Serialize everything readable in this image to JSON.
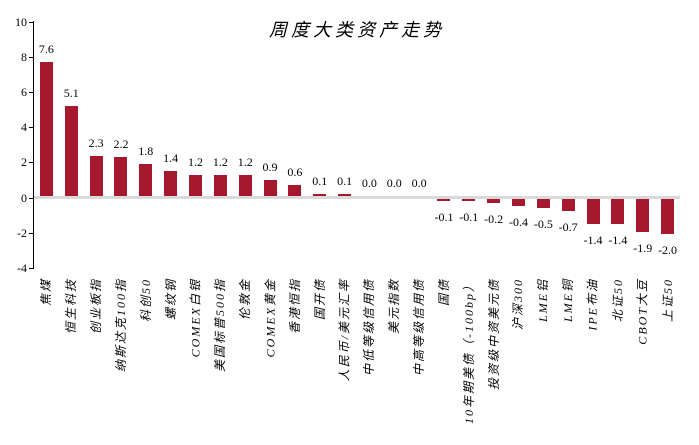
{
  "chart_data": {
    "type": "bar",
    "title": "周度大类资产走势",
    "categories": [
      "焦煤",
      "恒生科技",
      "创业板指",
      "纳斯达克100指",
      "科创50",
      "螺纹钢",
      "COMEX白银",
      "美国标普500指",
      "伦敦金",
      "COMEX黄金",
      "香港恒指",
      "国开债",
      "人民币/美元汇率",
      "中低等级信用债",
      "美元指数",
      "中高等级信用债",
      "国债",
      "10年期美债（-100bp）",
      "投资级中资美元债",
      "沪深300",
      "LME铝",
      "LME铜",
      "IPE布油",
      "北证50",
      "CBOT大豆",
      "上证50"
    ],
    "values": [
      7.6,
      5.1,
      2.3,
      2.2,
      1.8,
      1.4,
      1.2,
      1.2,
      1.2,
      0.9,
      0.6,
      0.1,
      0.1,
      0.0,
      0.0,
      0.0,
      -0.1,
      -0.1,
      -0.2,
      -0.4,
      -0.5,
      -0.7,
      -1.4,
      -1.4,
      -1.9,
      -2.0
    ],
    "value_labels": [
      "7.6",
      "5.1",
      "2.3",
      "2.2",
      "1.8",
      "1.4",
      "1.2",
      "1.2",
      "1.2",
      "0.9",
      "0.6",
      "0.1",
      "0.1",
      "0.0",
      "0.0",
      "0.0",
      "-0.1",
      "-0.1",
      "-0.2",
      "-0.4",
      "-0.5",
      "-0.7",
      "-1.4",
      "-1.4",
      "-1.9",
      "-2.0"
    ],
    "xlabel": "",
    "ylabel": "",
    "ylim": [
      -4,
      10
    ],
    "yticks": [
      10,
      8,
      6,
      4,
      2,
      0,
      -2,
      -4
    ],
    "ytick_labels": [
      "10",
      "8",
      "6",
      "4",
      "2",
      "0",
      "-2",
      "-4"
    ],
    "grid": "zero-line-only",
    "legend": "none",
    "colors": {
      "bar": "#A5182D",
      "zero_line": "#D9D9D9",
      "axis": "#000000",
      "text": "#000000",
      "background": "#FFFFFF"
    }
  }
}
